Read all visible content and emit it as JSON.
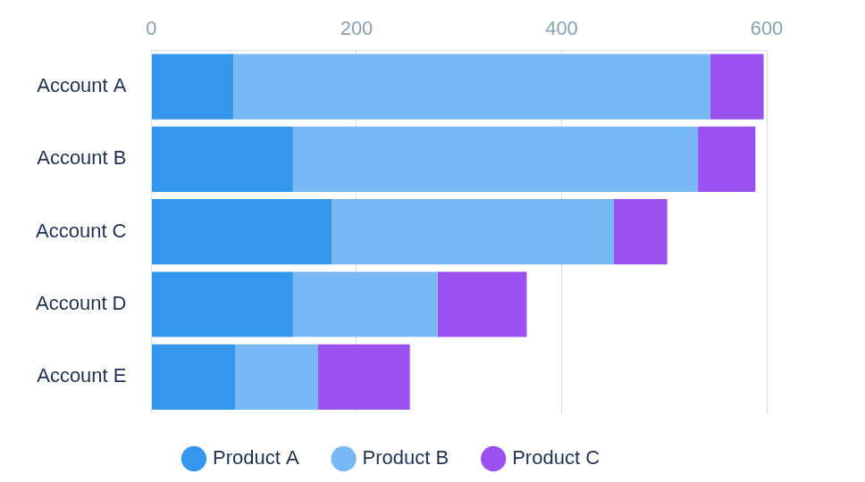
{
  "chart_data": {
    "type": "bar",
    "orientation": "horizontal",
    "stacked": true,
    "categories": [
      "Account A",
      "Account B",
      "Account C",
      "Account D",
      "Account E"
    ],
    "series": [
      {
        "name": "Product A",
        "color": "#3597ec",
        "values": [
          80,
          138,
          176,
          138,
          82
        ]
      },
      {
        "name": "Product B",
        "color": "#78b9f5",
        "values": [
          465,
          395,
          275,
          141,
          80
        ]
      },
      {
        "name": "Product C",
        "color": "#9b51f0",
        "values": [
          52,
          56,
          52,
          87,
          90
        ]
      }
    ],
    "xlim": [
      0,
      600
    ],
    "xticks": [
      0,
      200,
      400,
      600
    ],
    "grid": true,
    "legend": "bottom"
  }
}
